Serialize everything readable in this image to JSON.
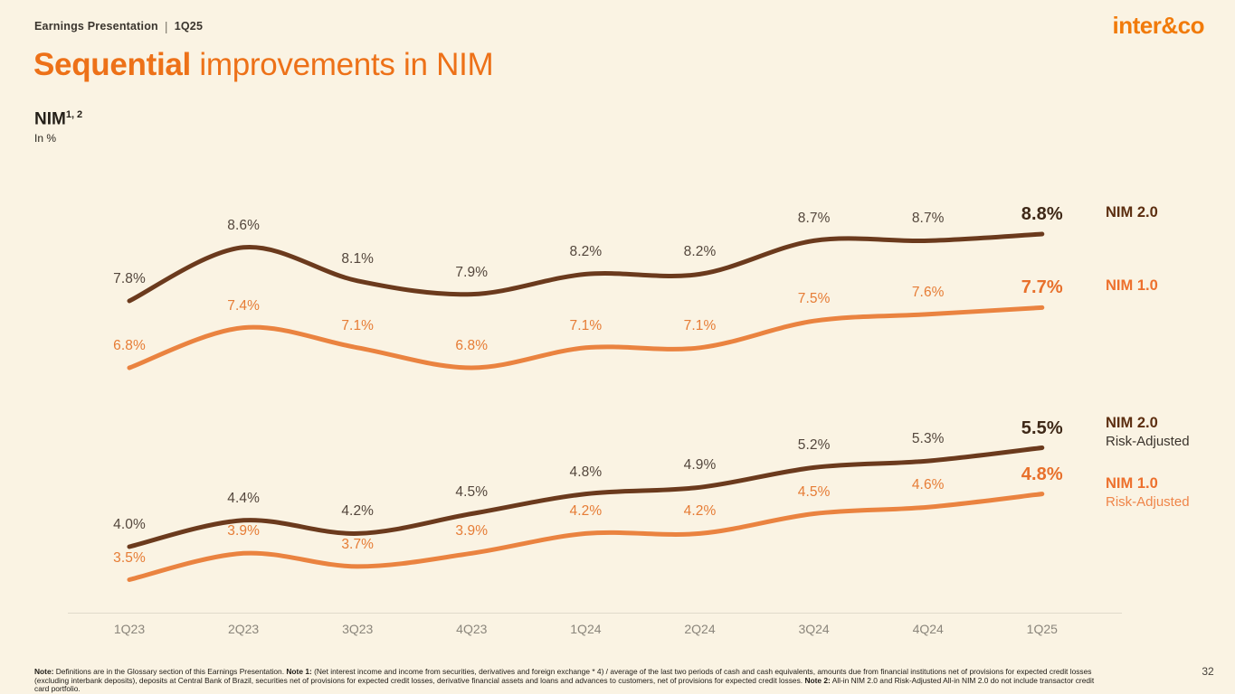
{
  "slide": {
    "header": {
      "deck_title": "Earnings Presentation",
      "separator": "|",
      "quarter": "1Q25"
    },
    "logo_text": "inter&co",
    "title": {
      "emphasis": "Sequential",
      "rest": " improvements in NIM"
    },
    "metric": {
      "name": "NIM",
      "superscript": "1, 2",
      "unit": "In %"
    },
    "page_number": "32",
    "footnote_lines": [
      [
        {
          "text": "Note:",
          "bold": true
        },
        {
          "text": " Definitions are in the Glossary section of this Earnings Presentation. ",
          "bold": false
        },
        {
          "text": "Note 1:",
          "bold": true
        },
        {
          "text": " (Net interest income and income from securities, derivatives and foreign exchange * 4) / average of the last two periods of cash and cash equivalents, amounts due from financial institutions net of provisions for expected credit losses",
          "bold": false
        }
      ],
      [
        {
          "text": "(excluding interbank deposits), deposits at Central Bank of Brazil, securities net of provisions for expected credit losses, derivative financial assets and loans and advances to customers, net of provisions for expected credit losses. ",
          "bold": false
        },
        {
          "text": "Note 2:",
          "bold": true
        },
        {
          "text": " All-in NIM 2.0 and Risk-Adjusted All-in NIM 2.0 do not include transactor credit",
          "bold": false
        }
      ],
      [
        {
          "text": "card portfolio.",
          "bold": false
        }
      ]
    ]
  },
  "chart_data": {
    "type": "line",
    "title": "NIM",
    "subtitle": "Sequential improvements in NIM",
    "xlabel": "",
    "ylabel": "In %",
    "value_suffix": "%",
    "grid": false,
    "legend_position": "right",
    "categories": [
      "1Q23",
      "2Q23",
      "3Q23",
      "4Q23",
      "1Q24",
      "2Q24",
      "3Q24",
      "4Q24",
      "1Q25"
    ],
    "axis_label_color": "#8B867C",
    "series": [
      {
        "name": "NIM 2.0",
        "group": "top",
        "values": [
          7.8,
          8.6,
          8.1,
          7.9,
          8.2,
          8.2,
          8.7,
          8.7,
          8.8
        ],
        "line_color": "#6B3A1D",
        "label_color": "#53463C",
        "final_label_color": "#3E2817",
        "legend": {
          "line1": "NIM 2.0",
          "line2": ""
        },
        "legend_color": "#5C2E10",
        "legend_line2_color": ""
      },
      {
        "name": "NIM 1.0",
        "group": "top",
        "values": [
          6.8,
          7.4,
          7.1,
          6.8,
          7.1,
          7.1,
          7.5,
          7.6,
          7.7
        ],
        "line_color": "#EA8340",
        "label_color": "#E67C35",
        "final_label_color": "#E8702B",
        "legend": {
          "line1": "NIM 1.0",
          "line2": ""
        },
        "legend_color": "#ED702D",
        "legend_line2_color": ""
      },
      {
        "name": "NIM 2.0 Risk-Adjusted",
        "group": "bottom",
        "values": [
          4.0,
          4.4,
          4.2,
          4.5,
          4.8,
          4.9,
          5.2,
          5.3,
          5.5
        ],
        "line_color": "#6B3A1D",
        "label_color": "#53463C",
        "final_label_color": "#3E2817",
        "legend": {
          "line1": "NIM 2.0",
          "line2": "Risk-Adjusted"
        },
        "legend_color": "#5C2E10",
        "legend_line2_color": "#3A332C"
      },
      {
        "name": "NIM 1.0 Risk-Adjusted",
        "group": "bottom",
        "values": [
          3.5,
          3.9,
          3.7,
          3.9,
          4.2,
          4.2,
          4.5,
          4.6,
          4.8
        ],
        "line_color": "#EA8340",
        "label_color": "#E67C35",
        "final_label_color": "#E8702B",
        "legend": {
          "line1": "NIM 1.0",
          "line2": "Risk-Adjusted"
        },
        "legend_color": "#ED702D",
        "legend_line2_color": "#EF8549"
      }
    ]
  }
}
